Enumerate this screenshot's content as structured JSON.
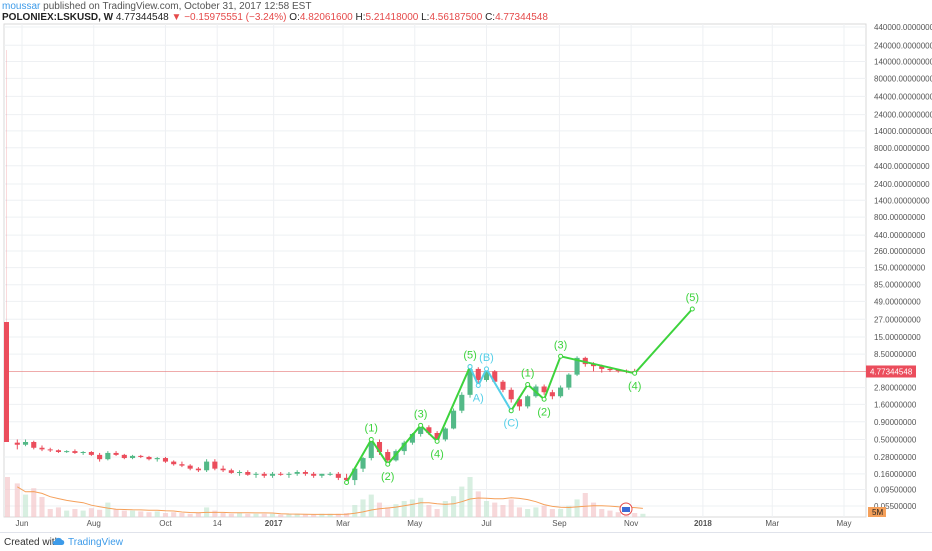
{
  "header": {
    "author": "moussar",
    "published": "published on TradingView.com, October 31, 2017 12:58 EST",
    "symbol": "POLONIEX:LSKUSD, W",
    "last_price": "4.77344548",
    "change": "▼ −0.15975551 (−3.24%)",
    "open_label": "O:",
    "open": "4.82061600",
    "high_label": "H:",
    "high": "5.21418000",
    "low_label": "L:",
    "low": "4.56187500",
    "close_label": "C:",
    "close": "4.77344548"
  },
  "footer": {
    "created_with": "Created with",
    "brand": "TradingView"
  },
  "colors": {
    "up": "#53b987",
    "down": "#eb4d5c",
    "wave": "#3dd33d",
    "corrective": "#55cfe8",
    "price_line": "#e57373",
    "ma": "#f5a05a"
  },
  "chart_data": {
    "type": "candlestick",
    "scale": "log",
    "y_ticks": [
      "440000.00000000",
      "240000.00000000",
      "140000.00000000",
      "80000.00000000",
      "44000.00000000",
      "24000.00000000",
      "14000.00000000",
      "8000.00000000",
      "4400.00000000",
      "2400.00000000",
      "1400.00000000",
      "800.00000000",
      "440.00000000",
      "260.00000000",
      "150.00000000",
      "85.00000000",
      "49.00000000",
      "27.00000000",
      "15.00000000",
      "8.50000000",
      "4.77344548",
      "2.80000000",
      "1.60000000",
      "0.90000000",
      "0.50000000",
      "0.28000000",
      "0.16000000",
      "0.09500000",
      "0.05500000"
    ],
    "x_ticks": [
      "Jun",
      "Aug",
      "Oct",
      "14",
      "2017",
      "Mar",
      "May",
      "Jul",
      "Sep",
      "Nov",
      "2018",
      "Mar",
      "May"
    ],
    "current_price_label": "4.77344548",
    "volume_label": "5M",
    "candles": [
      {
        "o": 0.45,
        "h": 0.5,
        "l": 0.36,
        "c": 0.42
      },
      {
        "o": 0.42,
        "h": 0.5,
        "l": 0.4,
        "c": 0.46
      },
      {
        "o": 0.46,
        "h": 0.48,
        "l": 0.36,
        "c": 0.38
      },
      {
        "o": 0.38,
        "h": 0.41,
        "l": 0.34,
        "c": 0.36
      },
      {
        "o": 0.36,
        "h": 0.38,
        "l": 0.33,
        "c": 0.35
      },
      {
        "o": 0.35,
        "h": 0.36,
        "l": 0.32,
        "c": 0.33
      },
      {
        "o": 0.33,
        "h": 0.35,
        "l": 0.32,
        "c": 0.34
      },
      {
        "o": 0.34,
        "h": 0.36,
        "l": 0.31,
        "c": 0.32
      },
      {
        "o": 0.32,
        "h": 0.34,
        "l": 0.3,
        "c": 0.33
      },
      {
        "o": 0.33,
        "h": 0.34,
        "l": 0.29,
        "c": 0.3
      },
      {
        "o": 0.3,
        "h": 0.32,
        "l": 0.24,
        "c": 0.26
      },
      {
        "o": 0.26,
        "h": 0.34,
        "l": 0.25,
        "c": 0.32
      },
      {
        "o": 0.32,
        "h": 0.34,
        "l": 0.29,
        "c": 0.3
      },
      {
        "o": 0.3,
        "h": 0.31,
        "l": 0.26,
        "c": 0.27
      },
      {
        "o": 0.27,
        "h": 0.3,
        "l": 0.26,
        "c": 0.29
      },
      {
        "o": 0.29,
        "h": 0.3,
        "l": 0.27,
        "c": 0.28
      },
      {
        "o": 0.28,
        "h": 0.29,
        "l": 0.25,
        "c": 0.26
      },
      {
        "o": 0.26,
        "h": 0.28,
        "l": 0.24,
        "c": 0.27
      },
      {
        "o": 0.27,
        "h": 0.28,
        "l": 0.23,
        "c": 0.24
      },
      {
        "o": 0.24,
        "h": 0.25,
        "l": 0.21,
        "c": 0.22
      },
      {
        "o": 0.22,
        "h": 0.24,
        "l": 0.2,
        "c": 0.21
      },
      {
        "o": 0.21,
        "h": 0.22,
        "l": 0.18,
        "c": 0.19
      },
      {
        "o": 0.19,
        "h": 0.2,
        "l": 0.17,
        "c": 0.18
      },
      {
        "o": 0.18,
        "h": 0.26,
        "l": 0.17,
        "c": 0.24
      },
      {
        "o": 0.24,
        "h": 0.26,
        "l": 0.18,
        "c": 0.19
      },
      {
        "o": 0.19,
        "h": 0.21,
        "l": 0.17,
        "c": 0.18
      },
      {
        "o": 0.18,
        "h": 0.19,
        "l": 0.16,
        "c": 0.165
      },
      {
        "o": 0.165,
        "h": 0.18,
        "l": 0.15,
        "c": 0.17
      },
      {
        "o": 0.17,
        "h": 0.18,
        "l": 0.15,
        "c": 0.155
      },
      {
        "o": 0.155,
        "h": 0.17,
        "l": 0.14,
        "c": 0.16
      },
      {
        "o": 0.16,
        "h": 0.17,
        "l": 0.14,
        "c": 0.15
      },
      {
        "o": 0.15,
        "h": 0.17,
        "l": 0.14,
        "c": 0.16
      },
      {
        "o": 0.16,
        "h": 0.17,
        "l": 0.15,
        "c": 0.155
      },
      {
        "o": 0.155,
        "h": 0.17,
        "l": 0.14,
        "c": 0.16
      },
      {
        "o": 0.16,
        "h": 0.18,
        "l": 0.15,
        "c": 0.17
      },
      {
        "o": 0.17,
        "h": 0.18,
        "l": 0.15,
        "c": 0.16
      },
      {
        "o": 0.16,
        "h": 0.17,
        "l": 0.14,
        "c": 0.15
      },
      {
        "o": 0.15,
        "h": 0.16,
        "l": 0.14,
        "c": 0.16
      },
      {
        "o": 0.16,
        "h": 0.17,
        "l": 0.15,
        "c": 0.16
      },
      {
        "o": 0.16,
        "h": 0.17,
        "l": 0.13,
        "c": 0.14
      },
      {
        "o": 0.14,
        "h": 0.16,
        "l": 0.12,
        "c": 0.13
      },
      {
        "o": 0.13,
        "h": 0.2,
        "l": 0.11,
        "c": 0.19
      },
      {
        "o": 0.19,
        "h": 0.28,
        "l": 0.17,
        "c": 0.27
      },
      {
        "o": 0.27,
        "h": 0.5,
        "l": 0.25,
        "c": 0.46
      },
      {
        "o": 0.46,
        "h": 0.5,
        "l": 0.3,
        "c": 0.33
      },
      {
        "o": 0.33,
        "h": 0.36,
        "l": 0.22,
        "c": 0.25
      },
      {
        "o": 0.25,
        "h": 0.36,
        "l": 0.24,
        "c": 0.34
      },
      {
        "o": 0.34,
        "h": 0.48,
        "l": 0.3,
        "c": 0.45
      },
      {
        "o": 0.45,
        "h": 0.62,
        "l": 0.42,
        "c": 0.6
      },
      {
        "o": 0.6,
        "h": 0.8,
        "l": 0.55,
        "c": 0.75
      },
      {
        "o": 0.75,
        "h": 0.8,
        "l": 0.58,
        "c": 0.62
      },
      {
        "o": 0.62,
        "h": 0.66,
        "l": 0.48,
        "c": 0.5
      },
      {
        "o": 0.5,
        "h": 0.75,
        "l": 0.47,
        "c": 0.72
      },
      {
        "o": 0.72,
        "h": 1.4,
        "l": 0.7,
        "c": 1.3
      },
      {
        "o": 1.3,
        "h": 2.4,
        "l": 1.2,
        "c": 2.2
      },
      {
        "o": 2.2,
        "h": 5.6,
        "l": 2.0,
        "c": 5.2
      },
      {
        "o": 5.2,
        "h": 5.5,
        "l": 3.0,
        "c": 3.6
      },
      {
        "o": 3.6,
        "h": 5.2,
        "l": 3.4,
        "c": 4.8
      },
      {
        "o": 4.8,
        "h": 5.0,
        "l": 3.2,
        "c": 3.4
      },
      {
        "o": 3.4,
        "h": 3.6,
        "l": 2.4,
        "c": 2.6
      },
      {
        "o": 2.6,
        "h": 2.8,
        "l": 1.7,
        "c": 1.9
      },
      {
        "o": 1.9,
        "h": 2.1,
        "l": 1.3,
        "c": 1.5
      },
      {
        "o": 1.5,
        "h": 2.2,
        "l": 1.4,
        "c": 2.1
      },
      {
        "o": 2.1,
        "h": 3.1,
        "l": 2.0,
        "c": 2.9
      },
      {
        "o": 2.9,
        "h": 3.1,
        "l": 2.2,
        "c": 2.4
      },
      {
        "o": 2.4,
        "h": 2.6,
        "l": 1.9,
        "c": 2.1
      },
      {
        "o": 2.1,
        "h": 3.0,
        "l": 2.0,
        "c": 2.8
      },
      {
        "o": 2.8,
        "h": 4.5,
        "l": 2.6,
        "c": 4.3
      },
      {
        "o": 4.3,
        "h": 7.9,
        "l": 4.1,
        "c": 7.5
      },
      {
        "o": 7.5,
        "h": 7.8,
        "l": 5.6,
        "c": 6.1
      },
      {
        "o": 6.1,
        "h": 6.5,
        "l": 4.8,
        "c": 5.7
      },
      {
        "o": 5.7,
        "h": 6.0,
        "l": 4.6,
        "c": 5.2
      },
      {
        "o": 5.2,
        "h": 5.6,
        "l": 4.7,
        "c": 5.0
      },
      {
        "o": 5.0,
        "h": 5.2,
        "l": 4.6,
        "c": 4.9
      },
      {
        "o": 4.9,
        "h": 5.1,
        "l": 4.5,
        "c": 4.8
      },
      {
        "o": 4.820616,
        "h": 5.21418,
        "l": 4.561875,
        "c": 4.77344548
      }
    ],
    "volume_relative": [
      0.42,
      0.28,
      0.36,
      0.25,
      0.1,
      0.12,
      0.08,
      0.1,
      0.08,
      0.11,
      0.09,
      0.18,
      0.1,
      0.08,
      0.08,
      0.07,
      0.06,
      0.07,
      0.05,
      0.06,
      0.05,
      0.04,
      0.05,
      0.12,
      0.08,
      0.05,
      0.04,
      0.05,
      0.04,
      0.04,
      0.04,
      0.04,
      0.03,
      0.04,
      0.04,
      0.03,
      0.03,
      0.04,
      0.04,
      0.04,
      0.05,
      0.15,
      0.22,
      0.28,
      0.18,
      0.12,
      0.16,
      0.2,
      0.22,
      0.24,
      0.15,
      0.1,
      0.2,
      0.26,
      0.38,
      0.5,
      0.32,
      0.2,
      0.18,
      0.15,
      0.22,
      0.12,
      0.1,
      0.12,
      0.14,
      0.1,
      0.1,
      0.14,
      0.22,
      0.3,
      0.18,
      0.1,
      0.08,
      0.06,
      0.05,
      0.05,
      0.04
    ],
    "elliott_main": [
      {
        "label": "(1)",
        "date": "2017-03-25",
        "price": 0.5
      },
      {
        "label": "(2)",
        "date": "2017-04-08",
        "price": 0.22
      },
      {
        "label": "(3)",
        "date": "2017-05-06",
        "price": 0.8
      },
      {
        "label": "(4)",
        "date": "2017-05-20",
        "price": 0.47
      },
      {
        "label": "(5)",
        "date": "2017-06-17",
        "price": 5.6
      }
    ],
    "elliott_abc": [
      {
        "label": "A)",
        "date": "2017-06-24",
        "price": 3.0
      },
      {
        "label": "(B)",
        "date": "2017-07-01",
        "price": 5.2
      },
      {
        "label": "(C)",
        "date": "2017-07-22",
        "price": 1.3
      }
    ],
    "elliott_next": [
      {
        "label": "(1)",
        "date": "2017-08-05",
        "price": 3.1
      },
      {
        "label": "(2)",
        "date": "2017-08-19",
        "price": 1.9
      },
      {
        "label": "(3)",
        "date": "2017-09-02",
        "price": 7.9
      },
      {
        "label": "(4)",
        "date": "2017-11-04",
        "price": 4.5
      },
      {
        "label": "(5)",
        "date": "2017-12-23",
        "price": 38
      }
    ]
  }
}
